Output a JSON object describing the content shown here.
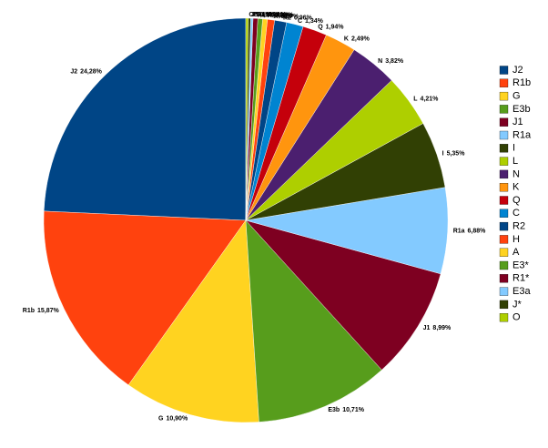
{
  "chart_data": {
    "type": "pie",
    "categories": [
      "J2",
      "R1b",
      "G",
      "E3b",
      "J1",
      "R1a",
      "I",
      "L",
      "N",
      "K",
      "Q",
      "C",
      "R2",
      "H",
      "A",
      "E3*",
      "R1*",
      "E3a",
      "J*",
      "O"
    ],
    "values": [
      24.28,
      15.87,
      10.9,
      10.71,
      8.99,
      6.88,
      5.35,
      4.21,
      3.82,
      2.49,
      1.94,
      1.34,
      0.96,
      0.57,
      0.38,
      0.38,
      0.38,
      0.19,
      0.19,
      0.19
    ],
    "value_labels": [
      "24,28%",
      "15,87%",
      "10,90%",
      "10,71%",
      "8,99%",
      "6,88%",
      "5,35%",
      "4,21%",
      "3,82%",
      "2,49%",
      "1,94%",
      "1,34%",
      "0,96%",
      "0,57%",
      "0,38%",
      "0,38%",
      "0,38%",
      "0,19%",
      "0,19%",
      "0,19%"
    ],
    "colors": [
      "#004586",
      "#ff420e",
      "#ffd320",
      "#579d1c",
      "#7e0021",
      "#83caff",
      "#314004",
      "#aecf00",
      "#4b1f6f",
      "#ff950e",
      "#c5000b",
      "#0084d1",
      "#004586",
      "#ff420e",
      "#ffd320",
      "#579d1c",
      "#7e0021",
      "#83caff",
      "#314004",
      "#aecf00"
    ],
    "direction": "counterclockwise",
    "legend": "right"
  }
}
